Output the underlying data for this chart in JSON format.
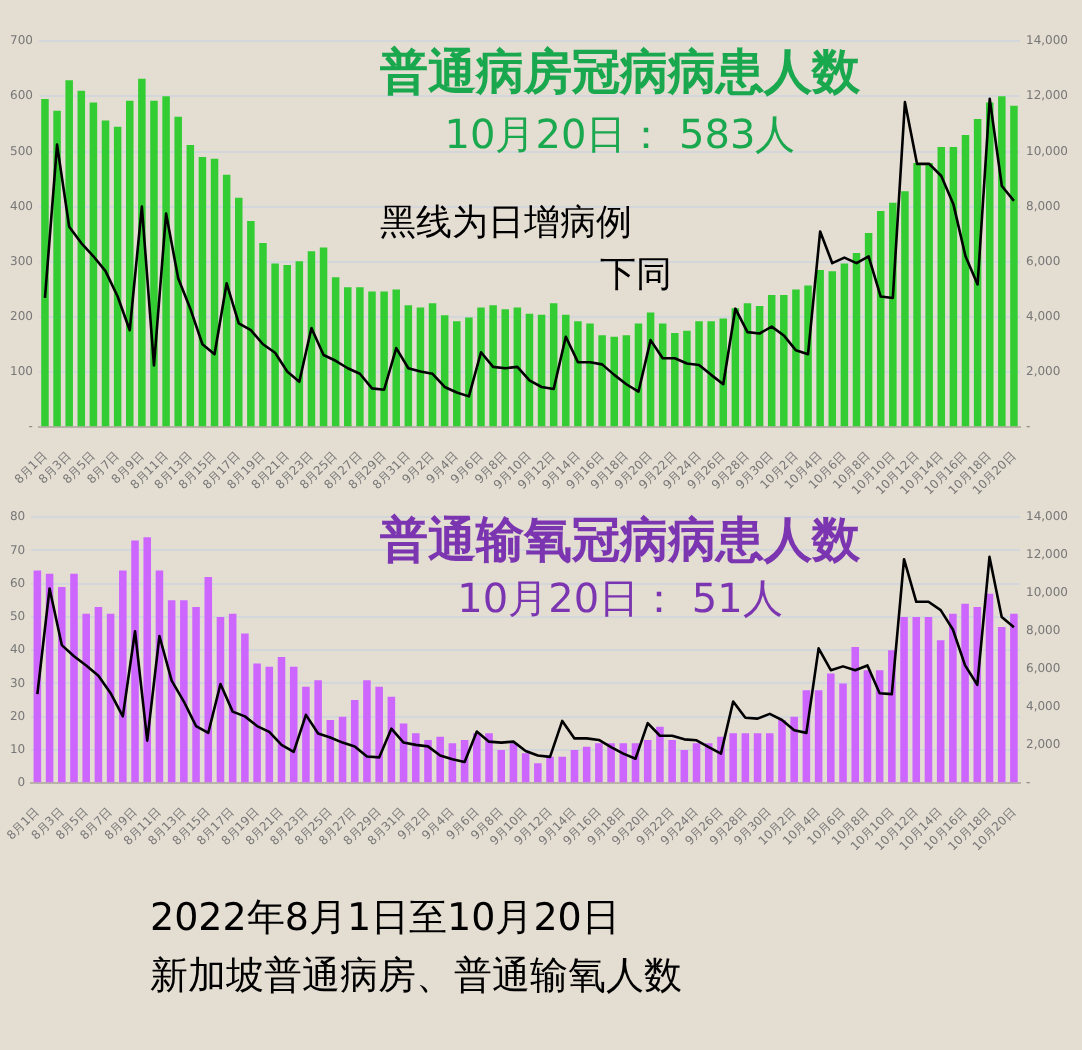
{
  "chart_data": [
    {
      "type": "bar",
      "title": "普通病房冠病病患人数",
      "subtitle": "10月20日： 583人",
      "annotations": [
        "黑线为日增病例",
        "下同"
      ],
      "categories": [
        "8月1日",
        null,
        "8月3日",
        null,
        "8月5日",
        null,
        "8月7日",
        null,
        "8月9日",
        null,
        "8月11日",
        null,
        "8月13日",
        null,
        "8月15日",
        null,
        "8月17日",
        null,
        "8月19日",
        null,
        "8月21日",
        null,
        "8月23日",
        null,
        "8月25日",
        null,
        "8月27日",
        null,
        "8月29日",
        null,
        "8月31日",
        null,
        "9月2日",
        null,
        "9月4日",
        null,
        "9月6日",
        null,
        "9月8日",
        null,
        "9月10日",
        null,
        "9月12日",
        null,
        "9月14日",
        null,
        "9月16日",
        null,
        "9月18日",
        null,
        "9月20日",
        null,
        "9月22日",
        null,
        "9月24日",
        null,
        "9月26日",
        null,
        "9月28日",
        null,
        "9月30日",
        null,
        "10月2日",
        null,
        "10月4日",
        null,
        "10月6日",
        null,
        "10月8日",
        null,
        "10月10日",
        null,
        "10月12日",
        null,
        "10月14日",
        null,
        "10月16日",
        null,
        "10月18日",
        null,
        "10月20日"
      ],
      "ylim": [
        0,
        700
      ],
      "yticks": [
        {
          "value": 0,
          "label": "-"
        },
        100,
        200,
        300,
        400,
        500,
        600,
        700
      ],
      "y2lim": [
        0,
        14000
      ],
      "y2ticks": [
        {
          "value": 0,
          "label": "-"
        },
        {
          "value": 2000,
          "label": "2,000"
        },
        {
          "value": 4000,
          "label": "4,000"
        },
        {
          "value": 6000,
          "label": "6,000"
        },
        {
          "value": 8000,
          "label": "8,000"
        },
        {
          "value": 10000,
          "label": "10,000"
        },
        {
          "value": 12000,
          "label": "12,000"
        },
        {
          "value": 14000,
          "label": "14,000"
        }
      ],
      "grid": "y",
      "legend": false,
      "marker": "none",
      "line_style": "solid",
      "series": [
        {
          "color": "#33cc33",
          "values": [
            595,
            574,
            629,
            610,
            589,
            556,
            545,
            592,
            632,
            592,
            600,
            563,
            512,
            490,
            487,
            458,
            416,
            374,
            334,
            297,
            294,
            301,
            319,
            326,
            272,
            254,
            254,
            246,
            246,
            250,
            221,
            217,
            225,
            203,
            192,
            199,
            217,
            221,
            214,
            217,
            206,
            204,
            225,
            204,
            192,
            188,
            167,
            164,
            167,
            188,
            208,
            188,
            171,
            175,
            192,
            192,
            197,
            216,
            225,
            220,
            240,
            240,
            250,
            257,
            285,
            283,
            297,
            316,
            352,
            392,
            407,
            428,
            479,
            479,
            508,
            508,
            530,
            559,
            589,
            600,
            583
          ]
        },
        {
          "type": "line",
          "color": "#000000",
          "axis": "y2",
          "values": [
            4690,
            10250,
            7270,
            6680,
            6200,
            5660,
            4740,
            3520,
            8000,
            2240,
            7750,
            5400,
            4300,
            3010,
            2650,
            5220,
            3770,
            3520,
            3010,
            2700,
            2020,
            1650,
            3600,
            2620,
            2410,
            2140,
            1940,
            1410,
            1360,
            2870,
            2140,
            2020,
            1940,
            1460,
            1260,
            1120,
            2720,
            2190,
            2140,
            2190,
            1700,
            1460,
            1390,
            3280,
            2360,
            2360,
            2280,
            1900,
            1560,
            1290,
            3160,
            2500,
            2500,
            2310,
            2260,
            1900,
            1560,
            4300,
            3450,
            3400,
            3650,
            3330,
            2790,
            2650,
            7100,
            5950,
            6150,
            5950,
            6200,
            4740,
            4690,
            11790,
            9550,
            9550,
            9110,
            8090,
            6200,
            5180,
            11910,
            8750,
            8210
          ]
        }
      ]
    },
    {
      "type": "bar",
      "title": "普通输氧冠病病患人数",
      "subtitle": "10月20日： 51人",
      "annotations": [
        "2022年8月1日至10月20日",
        "新加坡普通病房、普通输氧人数"
      ],
      "categories": [
        "8月1日",
        null,
        "8月3日",
        null,
        "8月5日",
        null,
        "8月7日",
        null,
        "8月9日",
        null,
        "8月11日",
        null,
        "8月13日",
        null,
        "8月15日",
        null,
        "8月17日",
        null,
        "8月19日",
        null,
        "8月21日",
        null,
        "8月23日",
        null,
        "8月25日",
        null,
        "8月27日",
        null,
        "8月29日",
        null,
        "8月31日",
        null,
        "9月2日",
        null,
        "9月4日",
        null,
        "9月6日",
        null,
        "9月8日",
        null,
        "9月10日",
        null,
        "9月12日",
        null,
        "9月14日",
        null,
        "9月16日",
        null,
        "9月18日",
        null,
        "9月20日",
        null,
        "9月22日",
        null,
        "9月24日",
        null,
        "9月26日",
        null,
        "9月28日",
        null,
        "9月30日",
        null,
        "10月2日",
        null,
        "10月4日",
        null,
        "10月6日",
        null,
        "10月8日",
        null,
        "10月10日",
        null,
        "10月12日",
        null,
        "10月14日",
        null,
        "10月16日",
        null,
        "10月18日",
        null,
        "10月20日"
      ],
      "ylim": [
        0,
        80
      ],
      "yticks": [
        0,
        10,
        20,
        30,
        40,
        50,
        60,
        70,
        80
      ],
      "y2lim": [
        0,
        14000
      ],
      "y2ticks": [
        {
          "value": 0,
          "label": "-"
        },
        {
          "value": 2000,
          "label": "2,000"
        },
        {
          "value": 4000,
          "label": "4,000"
        },
        {
          "value": 6000,
          "label": "6,000"
        },
        {
          "value": 8000,
          "label": "8,000"
        },
        {
          "value": 10000,
          "label": "10,000"
        },
        {
          "value": 12000,
          "label": "12,000"
        },
        {
          "value": 14000,
          "label": "14,000"
        }
      ],
      "grid": "y",
      "legend": false,
      "marker": "none",
      "line_style": "solid",
      "series": [
        {
          "color": "#cc66ff",
          "values": [
            64,
            63,
            59,
            63,
            51,
            53,
            51,
            64,
            73,
            74,
            64,
            55,
            55,
            53,
            62,
            50,
            51,
            45,
            36,
            35,
            38,
            35,
            29,
            31,
            19,
            20,
            25,
            31,
            29,
            26,
            18,
            15,
            13,
            14,
            12,
            13,
            15,
            15,
            10,
            12,
            9,
            6,
            8,
            8,
            10,
            11,
            12,
            12,
            12,
            12,
            13,
            17,
            13,
            10,
            12,
            12,
            14,
            15,
            15,
            15,
            15,
            19,
            20,
            28,
            28,
            33,
            30,
            41,
            34,
            34,
            40,
            50,
            50,
            50,
            43,
            51,
            54,
            53,
            57,
            47,
            51
          ]
        },
        {
          "type": "line",
          "color": "#000000",
          "axis": "y2",
          "values": [
            4690,
            10250,
            7270,
            6680,
            6200,
            5660,
            4740,
            3520,
            8000,
            2240,
            7750,
            5400,
            4300,
            3010,
            2650,
            5220,
            3770,
            3520,
            3010,
            2700,
            2020,
            1650,
            3600,
            2620,
            2410,
            2140,
            1940,
            1410,
            1360,
            2870,
            2140,
            2020,
            1940,
            1460,
            1260,
            1120,
            2720,
            2190,
            2140,
            2190,
            1700,
            1460,
            1390,
            3280,
            2360,
            2360,
            2280,
            1900,
            1560,
            1290,
            3160,
            2500,
            2500,
            2310,
            2260,
            1900,
            1560,
            4300,
            3450,
            3400,
            3650,
            3330,
            2790,
            2650,
            7100,
            5950,
            6150,
            5950,
            6200,
            4740,
            4690,
            11790,
            9550,
            9550,
            9110,
            8090,
            6200,
            5180,
            11910,
            8750,
            8210
          ]
        }
      ]
    }
  ]
}
